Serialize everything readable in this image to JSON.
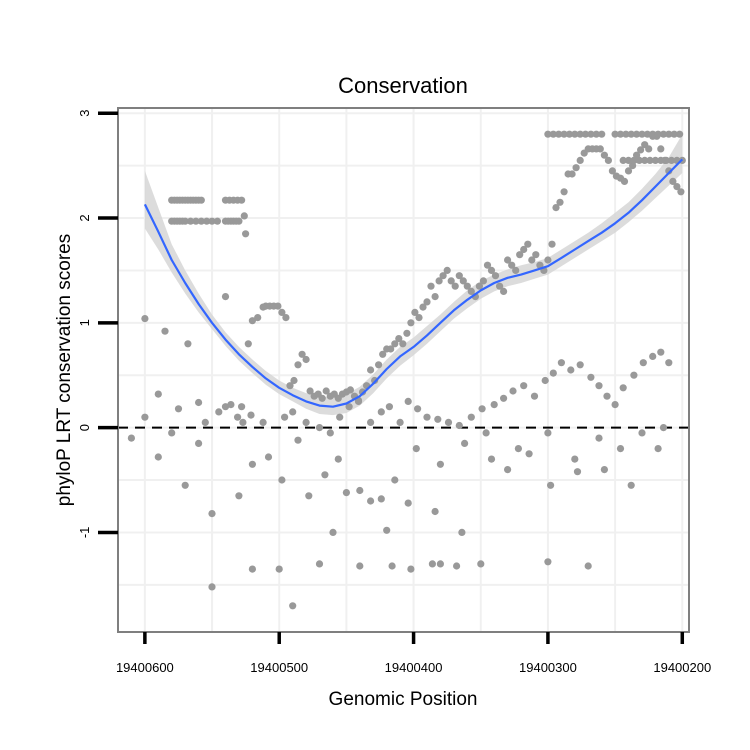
{
  "chart_data": {
    "type": "scatter",
    "title": "Conservation",
    "xlabel": "Genomic Position",
    "ylabel": "phyloP LRT conservation scores",
    "xlim": [
      19400620,
      19400195
    ],
    "x_reversed": true,
    "ylim": [
      -1.95,
      3.05
    ],
    "x_ticks": [
      19400600,
      19400500,
      19400400,
      19400300,
      19400200
    ],
    "x_tick_labels": [
      "19400600",
      "19400500",
      "19400400",
      "19400300",
      "19400200"
    ],
    "y_ticks": [
      -1,
      0,
      1,
      2,
      3
    ],
    "y_tick_labels": [
      "-1",
      "0",
      "1",
      "2",
      "3"
    ],
    "grid": true,
    "reference_line": {
      "y": 0,
      "style": "dashed"
    },
    "colors": {
      "points": "#999999",
      "smooth": "#3366ff",
      "band": "#d6d6d6",
      "frame": "#7f7f7f",
      "grid": "#f0f0f0"
    },
    "series": [
      {
        "type": "scatter",
        "x": [
          19400580,
          19400578,
          19400576,
          19400574,
          19400572,
          19400570,
          19400568,
          19400566,
          19400564,
          19400562,
          19400560,
          19400558,
          19400580,
          19400578,
          19400576,
          19400574,
          19400572,
          19400570,
          19400566,
          19400562,
          19400558,
          19400554,
          19400550,
          19400546,
          19400540,
          19400538,
          19400536,
          19400534,
          19400532,
          19400530,
          19400540,
          19400537,
          19400534,
          19400531,
          19400528,
          19400526,
          19400525,
          19400523,
          19400600,
          19400590,
          19400585,
          19400575,
          19400568,
          19400560,
          19400555,
          19400545,
          19400540,
          19400536,
          19400531,
          19400527,
          19400520,
          19400516,
          19400512,
          19400510,
          19400507,
          19400504,
          19400501,
          19400498,
          19400495,
          19400492,
          19400489,
          19400486,
          19400483,
          19400480,
          19400477,
          19400474,
          19400471,
          19400468,
          19400465,
          19400462,
          19400459,
          19400456,
          19400453,
          19400450,
          19400447,
          19400444,
          19400441,
          19400438,
          19400435,
          19400432,
          19400429,
          19400426,
          19400423,
          19400420,
          19400417,
          19400414,
          19400411,
          19400408,
          19400405,
          19400402,
          19400399,
          19400396,
          19400393,
          19400390,
          19400387,
          19400384,
          19400381,
          19400378,
          19400375,
          19400372,
          19400369,
          19400366,
          19400363,
          19400360,
          19400357,
          19400354,
          19400351,
          19400348,
          19400345,
          19400342,
          19400339,
          19400336,
          19400333,
          19400330,
          19400327,
          19400324,
          19400321,
          19400318,
          19400315,
          19400312,
          19400309,
          19400306,
          19400303,
          19400300,
          19400297,
          19400294,
          19400291,
          19400288,
          19400285,
          19400282,
          19400279,
          19400276,
          19400273,
          19400270,
          19400267,
          19400264,
          19400261,
          19400258,
          19400255,
          19400252,
          19400249,
          19400246,
          19400243,
          19400240,
          19400237,
          19400234,
          19400231,
          19400228,
          19400225,
          19400222,
          19400219,
          19400216,
          19400213,
          19400210,
          19400207,
          19400204,
          19400201,
          19400300,
          19400296,
          19400292,
          19400288,
          19400284,
          19400280,
          19400276,
          19400272,
          19400268,
          19400264,
          19400260,
          19400250,
          19400246,
          19400242,
          19400238,
          19400234,
          19400230,
          19400226,
          19400222,
          19400218,
          19400214,
          19400210,
          19400206,
          19400202,
          19400244,
          19400240,
          19400236,
          19400232,
          19400228,
          19400224,
          19400220,
          19400216,
          19400212,
          19400208,
          19400204,
          19400200,
          19400528,
          19400521,
          19400512,
          19400496,
          19400490,
          19400480,
          19400470,
          19400462,
          19400455,
          19400448,
          19400441,
          19400432,
          19400424,
          19400418,
          19400410,
          19400404,
          19400397,
          19400390,
          19400382,
          19400374,
          19400366,
          19400357,
          19400349,
          19400340,
          19400333,
          19400326,
          19400318,
          19400310,
          19400302,
          19400296,
          19400290,
          19400283,
          19400276,
          19400268,
          19400262,
          19400256,
          19400250,
          19400244,
          19400236,
          19400229,
          19400222,
          19400216,
          19400210,
          19400610,
          19400590,
          19400570,
          19400550,
          19400530,
          19400508,
          19400486,
          19400466,
          19400450,
          19400432,
          19400414,
          19400398,
          19400380,
          19400362,
          19400346,
          19400330,
          19400314,
          19400298,
          19400280,
          19400262,
          19400246,
          19400230,
          19400214,
          19400600,
          19400580,
          19400560,
          19400540,
          19400520,
          19400498,
          19400478,
          19400456,
          19400440,
          19400424,
          19400404,
          19400384,
          19400364,
          19400342,
          19400322,
          19400300,
          19400278,
          19400258,
          19400238,
          19400218,
          19400550,
          19400520,
          19400500,
          19400470,
          19400440,
          19400416,
          19400402,
          19400386,
          19400368,
          19400350,
          19400300,
          19400270,
          19400490,
          19400460,
          19400420,
          19400380
        ],
        "y": [
          2.17,
          2.17,
          2.17,
          2.17,
          2.17,
          2.17,
          2.17,
          2.17,
          2.17,
          2.17,
          2.17,
          2.17,
          1.97,
          1.97,
          1.97,
          1.97,
          1.97,
          1.97,
          1.97,
          1.97,
          1.97,
          1.97,
          1.97,
          1.97,
          1.97,
          1.97,
          1.97,
          1.97,
          1.97,
          1.97,
          2.17,
          2.17,
          2.17,
          2.17,
          2.17,
          2.02,
          1.85,
          0.8,
          1.04,
          0.32,
          0.92,
          0.18,
          0.8,
          0.24,
          0.05,
          0.15,
          1.25,
          0.22,
          0.1,
          0.05,
          1.02,
          1.05,
          1.15,
          1.16,
          1.16,
          1.16,
          1.16,
          1.1,
          1.05,
          0.4,
          0.45,
          0.6,
          0.7,
          0.65,
          0.35,
          0.3,
          0.32,
          0.28,
          0.35,
          0.3,
          0.32,
          0.28,
          0.32,
          0.34,
          0.36,
          0.3,
          0.26,
          0.34,
          0.4,
          0.55,
          0.45,
          0.6,
          0.7,
          0.75,
          0.75,
          0.8,
          0.85,
          0.8,
          0.9,
          1.0,
          1.1,
          1.05,
          1.15,
          1.2,
          1.35,
          1.25,
          1.4,
          1.45,
          1.5,
          1.4,
          1.35,
          1.45,
          1.4,
          1.35,
          1.3,
          1.25,
          1.35,
          1.4,
          1.55,
          1.5,
          1.45,
          1.35,
          1.3,
          1.6,
          1.55,
          1.5,
          1.65,
          1.7,
          1.75,
          1.6,
          1.65,
          1.55,
          1.5,
          1.6,
          1.75,
          2.1,
          2.15,
          2.25,
          2.42,
          2.42,
          2.48,
          2.55,
          2.62,
          2.66,
          2.66,
          2.66,
          2.66,
          2.6,
          2.55,
          2.45,
          2.4,
          2.38,
          2.35,
          2.45,
          2.5,
          2.6,
          2.65,
          2.7,
          2.66,
          2.78,
          2.78,
          2.66,
          2.55,
          2.45,
          2.35,
          2.3,
          2.25,
          2.8,
          2.8,
          2.8,
          2.8,
          2.8,
          2.8,
          2.8,
          2.8,
          2.8,
          2.8,
          2.8,
          2.8,
          2.8,
          2.8,
          2.8,
          2.8,
          2.8,
          2.8,
          2.8,
          2.8,
          2.8,
          2.8,
          2.8,
          2.8,
          2.55,
          2.55,
          2.55,
          2.55,
          2.55,
          2.55,
          2.55,
          2.55,
          2.55,
          2.55,
          2.55,
          2.55,
          0.2,
          0.12,
          0.05,
          0.1,
          0.15,
          0.05,
          0.0,
          -0.05,
          0.1,
          0.2,
          0.25,
          0.05,
          0.15,
          0.2,
          0.05,
          0.25,
          0.18,
          0.1,
          0.08,
          0.05,
          0.02,
          0.1,
          0.18,
          0.22,
          0.28,
          0.35,
          0.4,
          0.3,
          0.45,
          0.52,
          0.62,
          0.55,
          0.6,
          0.48,
          0.4,
          0.3,
          0.22,
          0.38,
          0.5,
          0.62,
          0.68,
          0.72,
          0.62,
          -0.1,
          -0.28,
          -0.55,
          -0.82,
          -0.65,
          -0.28,
          -0.12,
          -0.45,
          -0.62,
          -0.7,
          -0.5,
          -0.2,
          -0.35,
          -0.15,
          -0.05,
          -0.4,
          -0.25,
          -0.55,
          -0.3,
          -0.1,
          -0.2,
          -0.05,
          0.0,
          0.1,
          -0.05,
          -0.15,
          0.2,
          -0.35,
          -0.5,
          -0.65,
          -0.3,
          -0.6,
          -0.68,
          -0.72,
          -0.8,
          -1.0,
          -0.3,
          -0.2,
          -0.05,
          -0.42,
          -0.4,
          -0.55,
          -0.2,
          -1.52,
          -1.35,
          -1.35,
          -1.3,
          -1.32,
          -1.32,
          -1.35,
          -1.3,
          -1.32,
          -1.3,
          -1.28,
          -1.32,
          -1.7,
          -1.0,
          -0.98,
          -1.3
        ],
        "name": ""
      },
      {
        "type": "line",
        "x": [
          19400600,
          19400590,
          19400580,
          19400570,
          19400560,
          19400550,
          19400540,
          19400530,
          19400520,
          19400510,
          19400500,
          19400490,
          19400480,
          19400470,
          19400460,
          19400450,
          19400440,
          19400430,
          19400420,
          19400410,
          19400400,
          19400390,
          19400380,
          19400370,
          19400360,
          19400350,
          19400340,
          19400330,
          19400320,
          19400310,
          19400300,
          19400290,
          19400280,
          19400270,
          19400260,
          19400250,
          19400240,
          19400230,
          19400220,
          19400210,
          19400200
        ],
        "y": [
          2.13,
          1.87,
          1.6,
          1.38,
          1.18,
          1.0,
          0.84,
          0.7,
          0.58,
          0.47,
          0.38,
          0.31,
          0.25,
          0.21,
          0.2,
          0.23,
          0.3,
          0.42,
          0.56,
          0.68,
          0.77,
          0.88,
          1.0,
          1.12,
          1.22,
          1.31,
          1.38,
          1.43,
          1.46,
          1.5,
          1.54,
          1.62,
          1.7,
          1.78,
          1.86,
          1.95,
          2.05,
          2.17,
          2.3,
          2.43,
          2.56
        ],
        "lower": [
          1.9,
          1.7,
          1.48,
          1.28,
          1.1,
          0.94,
          0.78,
          0.64,
          0.52,
          0.41,
          0.32,
          0.25,
          0.18,
          0.13,
          0.12,
          0.14,
          0.21,
          0.33,
          0.47,
          0.59,
          0.69,
          0.8,
          0.92,
          1.04,
          1.14,
          1.23,
          1.3,
          1.35,
          1.38,
          1.42,
          1.46,
          1.54,
          1.62,
          1.7,
          1.78,
          1.86,
          1.96,
          2.07,
          2.19,
          2.31,
          2.43
        ],
        "upper": [
          2.45,
          2.1,
          1.75,
          1.5,
          1.28,
          1.08,
          0.91,
          0.77,
          0.65,
          0.54,
          0.45,
          0.38,
          0.33,
          0.3,
          0.29,
          0.32,
          0.39,
          0.51,
          0.65,
          0.77,
          0.86,
          0.97,
          1.08,
          1.2,
          1.31,
          1.4,
          1.46,
          1.51,
          1.55,
          1.58,
          1.62,
          1.7,
          1.78,
          1.86,
          1.95,
          2.05,
          2.15,
          2.28,
          2.42,
          2.58,
          2.8
        ],
        "name": ""
      }
    ]
  }
}
